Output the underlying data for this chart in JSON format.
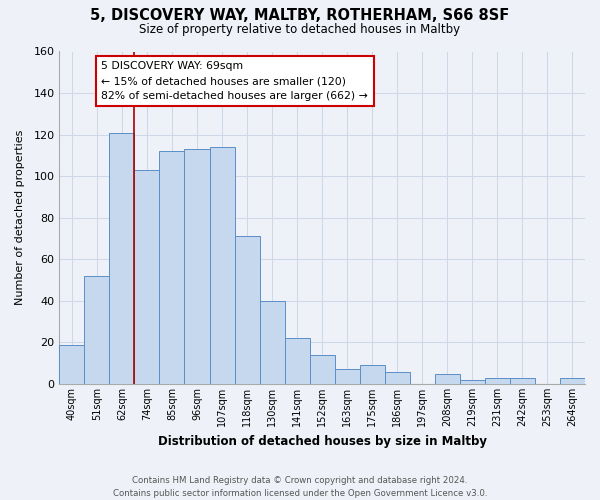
{
  "title": "5, DISCOVERY WAY, MALTBY, ROTHERHAM, S66 8SF",
  "subtitle": "Size of property relative to detached houses in Maltby",
  "xlabel": "Distribution of detached houses by size in Maltby",
  "ylabel": "Number of detached properties",
  "bar_labels": [
    "40sqm",
    "51sqm",
    "62sqm",
    "74sqm",
    "85sqm",
    "96sqm",
    "107sqm",
    "118sqm",
    "130sqm",
    "141sqm",
    "152sqm",
    "163sqm",
    "175sqm",
    "186sqm",
    "197sqm",
    "208sqm",
    "219sqm",
    "231sqm",
    "242sqm",
    "253sqm",
    "264sqm"
  ],
  "bar_heights": [
    19,
    52,
    121,
    103,
    112,
    113,
    114,
    71,
    40,
    22,
    14,
    7,
    9,
    6,
    0,
    5,
    2,
    3,
    3,
    0,
    3
  ],
  "bar_color": "#c5d8ee",
  "bar_edge_color": "#5b8fc9",
  "ylim": [
    0,
    160
  ],
  "yticks": [
    0,
    20,
    40,
    60,
    80,
    100,
    120,
    140,
    160
  ],
  "property_line_bar_index": 3,
  "annotation_title": "5 DISCOVERY WAY: 69sqm",
  "annotation_line1": "← 15% of detached houses are smaller (120)",
  "annotation_line2": "82% of semi-detached houses are larger (662) →",
  "annotation_box_color": "#ffffff",
  "annotation_box_edge": "#cc0000",
  "property_line_color": "#aa0000",
  "footer_line1": "Contains HM Land Registry data © Crown copyright and database right 2024.",
  "footer_line2": "Contains public sector information licensed under the Open Government Licence v3.0.",
  "grid_color": "#d0d8e8",
  "background_color": "#eef2f8"
}
